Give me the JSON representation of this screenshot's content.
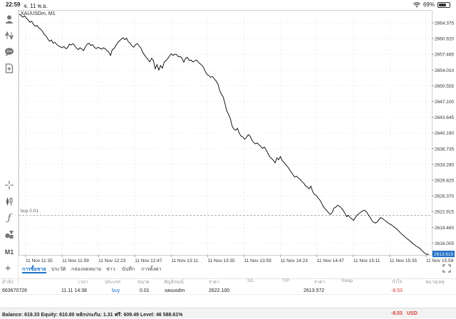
{
  "status_bar": {
    "time": "22:59",
    "date": "จ. 11 พ.ย.",
    "battery": "69%"
  },
  "chart": {
    "symbol_label": "XAUUSDm, M1",
    "buy_label": "buy 0.01",
    "current_price": "2613.615",
    "line_color": "#000000",
    "buy_line_color": "#999999",
    "price_tag_color": "#1f6fc5"
  },
  "chart_data": {
    "type": "line",
    "title": "XAUUSDm, M1",
    "y_ticks": [
      "2664.375",
      "2660.920",
      "2657.465",
      "2654.010",
      "2650.555",
      "2647.100",
      "2643.645",
      "2640.190",
      "2636.735",
      "2633.280",
      "2629.825",
      "2626.370",
      "2622.915",
      "2619.460",
      "2616.005"
    ],
    "x_ticks": [
      "11 Nov 11:35",
      "11 Nov 11:59",
      "11 Nov 12:23",
      "11 Nov 12:47",
      "11 Nov 13:11",
      "11 Nov 13:35",
      "11 Nov 13:59",
      "11 Nov 14:23",
      "11 Nov 14:47",
      "11 Nov 15:11",
      "11 Nov 15:35",
      "11 Nov 15:59"
    ],
    "ylim": [
      2613.4,
      2667.2
    ],
    "buy_level": 2622.1,
    "series": [
      {
        "values": [
          2666.3,
          2666.0,
          2665.6,
          2665.9,
          2665.4,
          2665.0,
          2664.5,
          2664.7,
          2664.0,
          2663.6,
          2663.8,
          2663.2,
          2663.0,
          2662.5,
          2661.8,
          2661.5,
          2660.8,
          2660.3,
          2660.6,
          2659.9,
          2660.1,
          2659.6,
          2659.3,
          2659.1,
          2658.9,
          2659.2,
          2658.7,
          2658.9,
          2659.7,
          2659.5,
          2659.8,
          2659.4,
          2658.8,
          2658.5,
          2658.9,
          2658.6,
          2658.3,
          2659.1,
          2659.7,
          2659.9,
          2659.4,
          2659.6,
          2659.0,
          2658.7,
          2659.0,
          2658.8,
          2658.6,
          2658.9,
          2658.7,
          2658.3,
          2658.0,
          2657.2,
          2658.5,
          2658.7,
          2659.4,
          2660.0,
          2660.4,
          2660.8,
          2661.1,
          2660.7,
          2661.0,
          2660.2,
          2659.9,
          2659.3,
          2659.0,
          2659.6,
          2659.8,
          2659.3,
          2658.9,
          2657.9,
          2657.3,
          2656.8,
          2656.3,
          2655.8,
          2656.6,
          2656.1,
          2654.3,
          2655.2,
          2654.0,
          2655.0,
          2654.4,
          2655.7,
          2656.1,
          2656.5,
          2657.1,
          2657.6,
          2657.2,
          2657.5,
          2657.4,
          2656.9,
          2657.0,
          2656.6,
          2655.7,
          2656.6,
          2656.8,
          2656.1,
          2656.2,
          2655.8,
          2656.0,
          2656.2,
          2655.8,
          2655.4,
          2655.1,
          2654.6,
          2653.7,
          2653.0,
          2652.8,
          2652.4,
          2652.6,
          2652.1,
          2651.6,
          2651.0,
          2649.6,
          2648.7,
          2648.1,
          2646.6,
          2645.0,
          2644.3,
          2643.3,
          2641.7,
          2641.0,
          2640.8,
          2641.2,
          2640.1,
          2639.5,
          2639.3,
          2638.8,
          2639.2,
          2639.8,
          2639.5,
          2638.7,
          2638.1,
          2637.8,
          2638.0,
          2637.6,
          2637.2,
          2636.8,
          2637.1,
          2636.5,
          2635.7,
          2635.0,
          2634.6,
          2634.2,
          2633.6,
          2634.7,
          2634.3,
          2635.0,
          2634.1,
          2633.7,
          2633.2,
          2632.8,
          2632.2,
          2631.6,
          2631.0,
          2630.5,
          2630.7,
          2630.3,
          2630.0,
          2629.5,
          2629.2,
          2628.6,
          2628.3,
          2627.9,
          2628.5,
          2627.3,
          2626.7,
          2626.5,
          2625.9,
          2625.5,
          2624.8,
          2624.0,
          2623.5,
          2623.1,
          2622.6,
          2622.3,
          2622.8,
          2623.7,
          2623.9,
          2624.3,
          2624.1,
          2623.7,
          2623.2,
          2622.6,
          2621.8,
          2622.1,
          2621.6,
          2621.3,
          2621.0,
          2621.7,
          2622.2,
          2622.5,
          2622.8,
          2623.1,
          2623.2,
          2622.9,
          2622.3,
          2621.7,
          2621.0,
          2620.6,
          2620.4,
          2620.6,
          2621.1,
          2621.6,
          2621.4,
          2621.1,
          2620.8,
          2620.5,
          2620.2,
          2620.0,
          2619.7,
          2619.4,
          2619.1,
          2618.7,
          2618.3,
          2617.9,
          2617.6,
          2617.2,
          2616.9,
          2616.6,
          2616.3,
          2615.9,
          2615.6,
          2615.3,
          2615.1,
          2614.8,
          2614.4,
          2614.0,
          2613.7,
          2613.5,
          2613.6
        ]
      }
    ],
    "grid": true
  },
  "sidebar": {
    "icons": [
      "account-icon",
      "trade-arrows-icon",
      "chat-icon",
      "add-document-icon",
      "crosshair-icon",
      "candlestick-icon",
      "function-icon",
      "objects-icon"
    ],
    "timeframe": "M1"
  },
  "toolbar": {
    "tabs": [
      "การซื้อขาย",
      "ประวัติ",
      "กล่องจดหมาย",
      "ข่าว",
      "บันทึก",
      "การตั้งค่า"
    ]
  },
  "table": {
    "headers": [
      "คำสั่ง",
      "เวลา",
      "ประเภท",
      "ขนาด",
      "สัญลักษณ์",
      "ราคา",
      "S/L",
      "T/P",
      "ราคา",
      "Swap",
      "กำไร",
      "หมายเหตุ"
    ],
    "row": {
      "order": "663670726",
      "time": "11.11 14:38",
      "type": "buy",
      "size": "0.01",
      "symbol": "xauusdm",
      "open_price": "2622.100",
      "sl": "",
      "tp": "",
      "price": "2613.572",
      "swap": "",
      "profit": "-8.53",
      "note": ""
    }
  },
  "footer": {
    "summary": "Balance: 619.33 Equity: 610.80 หลักประกัน: 1.31 ฟรี: 609.49 Level: 46 588.61%",
    "profit": "-8.53",
    "currency": "USD"
  }
}
